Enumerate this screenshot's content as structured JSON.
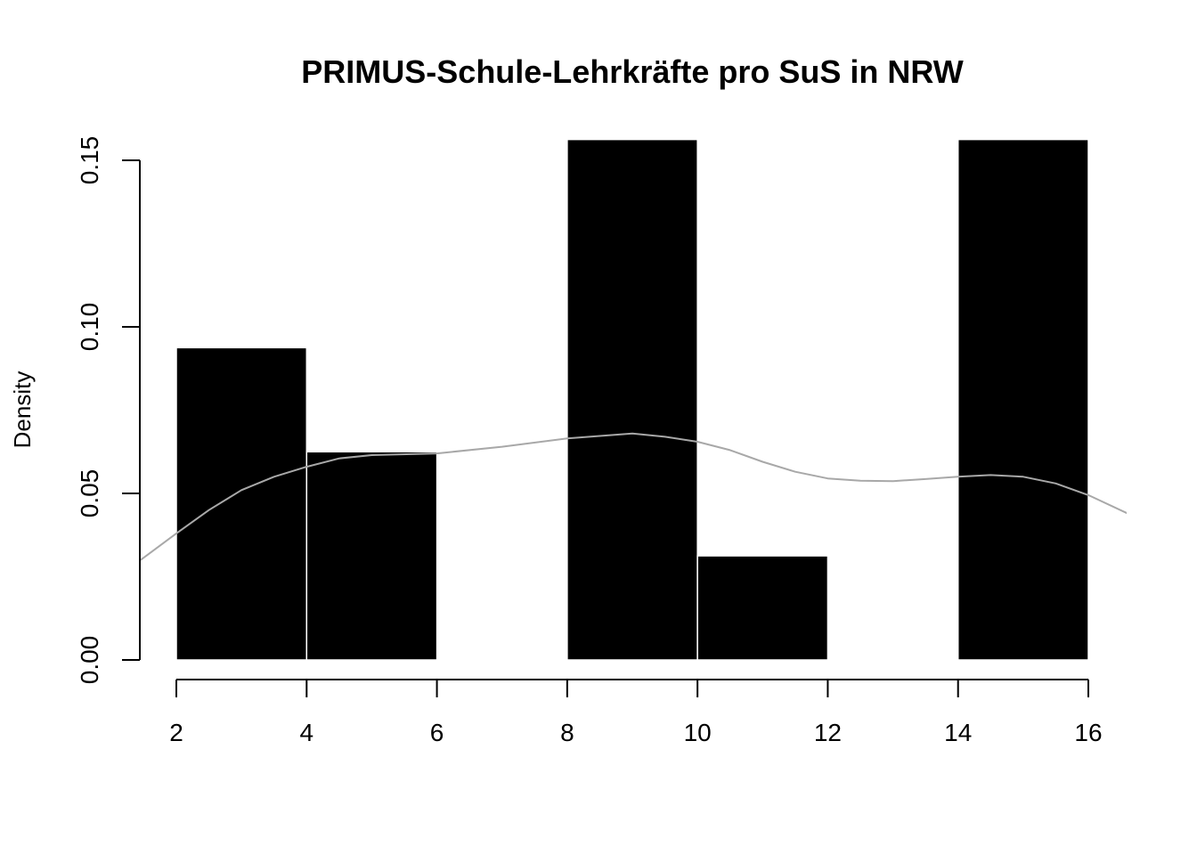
{
  "chart_data": {
    "type": "histogram",
    "title": "PRIMUS-Schule-Lehrkräfte pro SuS in NRW",
    "xlabel": "",
    "ylabel": "Density",
    "xlim": [
      2,
      16
    ],
    "ylim": [
      0,
      0.15
    ],
    "x_ticks": [
      2,
      4,
      6,
      8,
      10,
      12,
      14,
      16
    ],
    "y_ticks": [
      0.0,
      0.05,
      0.1,
      0.15
    ],
    "x_tick_labels": [
      "2",
      "4",
      "6",
      "8",
      "10",
      "12",
      "14",
      "16"
    ],
    "y_tick_labels": [
      "0.00",
      "0.05",
      "0.10",
      "0.15"
    ],
    "bins": [
      {
        "start": 2,
        "end": 4,
        "density": 0.09375
      },
      {
        "start": 4,
        "end": 6,
        "density": 0.0625
      },
      {
        "start": 6,
        "end": 8,
        "density": 0.0
      },
      {
        "start": 8,
        "end": 10,
        "density": 0.15625
      },
      {
        "start": 10,
        "end": 12,
        "density": 0.03125
      },
      {
        "start": 12,
        "end": 14,
        "density": 0.0
      },
      {
        "start": 14,
        "end": 16,
        "density": 0.15625
      }
    ],
    "density_curve": {
      "color": "#a8a8a8",
      "x": [
        1.45,
        2.0,
        2.5,
        3.0,
        3.5,
        4.0,
        4.5,
        5.0,
        6.0,
        7.0,
        8.0,
        9.0,
        9.5,
        10.0,
        10.5,
        11.0,
        11.5,
        12.0,
        12.5,
        13.0,
        13.5,
        14.0,
        14.5,
        15.0,
        15.5,
        16.0,
        16.6
      ],
      "y": [
        0.03,
        0.038,
        0.045,
        0.051,
        0.055,
        0.058,
        0.0605,
        0.0615,
        0.062,
        0.064,
        0.0665,
        0.068,
        0.067,
        0.0655,
        0.063,
        0.0595,
        0.0565,
        0.0545,
        0.0538,
        0.0537,
        0.0543,
        0.055,
        0.0555,
        0.055,
        0.053,
        0.0495,
        0.044
      ]
    },
    "bar_color": "#000000",
    "bar_border_color": "#ffffff"
  }
}
